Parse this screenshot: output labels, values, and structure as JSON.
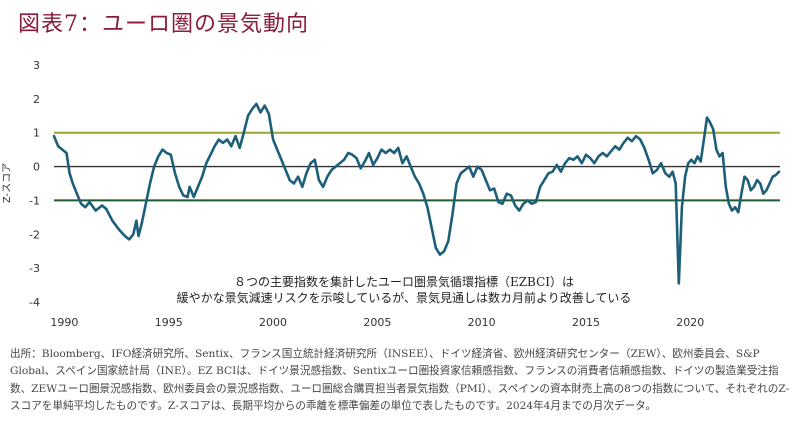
{
  "header": {
    "title": "図表7：ユーロ圏の景気動向"
  },
  "chart_data": {
    "type": "line",
    "title": "図表7：ユーロ圏の景気動向",
    "xlabel": "",
    "ylabel": "Z-スコア",
    "xlim": [
      1989.5,
      2024.3
    ],
    "ylim": [
      -4,
      3
    ],
    "x_ticks": [
      "1990",
      "1995",
      "2000",
      "2005",
      "2010",
      "2015",
      "2020"
    ],
    "y_ticks": [
      "3",
      "2",
      "1",
      "0",
      "-1",
      "-2",
      "-3",
      "-4"
    ],
    "reference_lines": [
      {
        "value": 1,
        "color": "#9aa62e"
      },
      {
        "value": 0,
        "color": "#333333"
      },
      {
        "value": -1,
        "color": "#1d5c2e"
      }
    ],
    "annotation": [
      "８つの主要指数を集計したユーロ圏景気循環指標（EZBCI）は",
      "緩やかな景気減速リスクを示唆しているが、景気見通しは数カ月前より改善している"
    ],
    "series_color": "#1d5f7a",
    "series": [
      {
        "name": "",
        "points": [
          [
            1989.5,
            0.9
          ],
          [
            1989.7,
            0.6
          ],
          [
            1989.9,
            0.5
          ],
          [
            1990.1,
            0.4
          ],
          [
            1990.25,
            -0.2
          ],
          [
            1990.4,
            -0.5
          ],
          [
            1990.6,
            -0.8
          ],
          [
            1990.8,
            -1.1
          ],
          [
            1991.0,
            -1.2
          ],
          [
            1991.2,
            -1.05
          ],
          [
            1991.5,
            -1.3
          ],
          [
            1991.8,
            -1.15
          ],
          [
            1992.0,
            -1.25
          ],
          [
            1992.3,
            -1.6
          ],
          [
            1992.6,
            -1.85
          ],
          [
            1992.9,
            -2.05
          ],
          [
            1993.1,
            -2.15
          ],
          [
            1993.3,
            -2.0
          ],
          [
            1993.45,
            -1.6
          ],
          [
            1993.55,
            -2.05
          ],
          [
            1993.7,
            -1.7
          ],
          [
            1993.9,
            -1.1
          ],
          [
            1994.1,
            -0.5
          ],
          [
            1994.3,
            0.0
          ],
          [
            1994.5,
            0.3
          ],
          [
            1994.7,
            0.5
          ],
          [
            1994.9,
            0.4
          ],
          [
            1995.1,
            0.35
          ],
          [
            1995.3,
            -0.2
          ],
          [
            1995.5,
            -0.6
          ],
          [
            1995.7,
            -0.85
          ],
          [
            1995.9,
            -0.9
          ],
          [
            1996.0,
            -0.6
          ],
          [
            1996.2,
            -0.9
          ],
          [
            1996.4,
            -0.6
          ],
          [
            1996.6,
            -0.3
          ],
          [
            1996.8,
            0.1
          ],
          [
            1997.0,
            0.35
          ],
          [
            1997.2,
            0.6
          ],
          [
            1997.4,
            0.8
          ],
          [
            1997.6,
            0.7
          ],
          [
            1997.8,
            0.8
          ],
          [
            1998.0,
            0.6
          ],
          [
            1998.2,
            0.9
          ],
          [
            1998.4,
            0.55
          ],
          [
            1998.6,
            1.0
          ],
          [
            1998.8,
            1.5
          ],
          [
            1999.0,
            1.7
          ],
          [
            1999.2,
            1.85
          ],
          [
            1999.4,
            1.6
          ],
          [
            1999.6,
            1.8
          ],
          [
            1999.8,
            1.55
          ],
          [
            2000.0,
            0.8
          ],
          [
            2000.2,
            0.5
          ],
          [
            2000.4,
            0.2
          ],
          [
            2000.6,
            -0.1
          ],
          [
            2000.8,
            -0.4
          ],
          [
            2001.0,
            -0.5
          ],
          [
            2001.2,
            -0.3
          ],
          [
            2001.4,
            -0.6
          ],
          [
            2001.6,
            -0.2
          ],
          [
            2001.8,
            0.1
          ],
          [
            2002.0,
            0.2
          ],
          [
            2002.2,
            -0.4
          ],
          [
            2002.4,
            -0.6
          ],
          [
            2002.6,
            -0.3
          ],
          [
            2002.8,
            -0.1
          ],
          [
            2003.0,
            0.0
          ],
          [
            2003.2,
            0.1
          ],
          [
            2003.4,
            0.2
          ],
          [
            2003.6,
            0.4
          ],
          [
            2003.8,
            0.35
          ],
          [
            2004.0,
            0.25
          ],
          [
            2004.2,
            -0.05
          ],
          [
            2004.4,
            0.15
          ],
          [
            2004.6,
            0.4
          ],
          [
            2004.8,
            0.05
          ],
          [
            2005.0,
            0.25
          ],
          [
            2005.2,
            0.5
          ],
          [
            2005.4,
            0.4
          ],
          [
            2005.6,
            0.5
          ],
          [
            2005.8,
            0.4
          ],
          [
            2006.0,
            0.55
          ],
          [
            2006.2,
            0.1
          ],
          [
            2006.4,
            0.3
          ],
          [
            2006.6,
            0.0
          ],
          [
            2006.8,
            -0.3
          ],
          [
            2007.0,
            -0.5
          ],
          [
            2007.2,
            -0.8
          ],
          [
            2007.4,
            -1.2
          ],
          [
            2007.6,
            -1.8
          ],
          [
            2007.8,
            -2.4
          ],
          [
            2008.0,
            -2.6
          ],
          [
            2008.2,
            -2.5
          ],
          [
            2008.4,
            -2.2
          ],
          [
            2008.6,
            -1.4
          ],
          [
            2008.8,
            -0.5
          ],
          [
            2009.0,
            -0.2
          ],
          [
            2009.2,
            -0.1
          ],
          [
            2009.4,
            0.0
          ],
          [
            2009.6,
            -0.3
          ],
          [
            2009.8,
            0.0
          ],
          [
            2010.0,
            -0.1
          ],
          [
            2010.2,
            -0.4
          ],
          [
            2010.4,
            -0.7
          ],
          [
            2010.6,
            -0.65
          ],
          [
            2010.8,
            -1.05
          ],
          [
            2011.0,
            -1.1
          ],
          [
            2011.2,
            -0.8
          ],
          [
            2011.4,
            -0.85
          ],
          [
            2011.6,
            -1.15
          ],
          [
            2011.8,
            -1.3
          ],
          [
            2012.0,
            -1.1
          ],
          [
            2012.2,
            -1.0
          ],
          [
            2012.4,
            -1.1
          ],
          [
            2012.6,
            -1.05
          ],
          [
            2012.8,
            -0.6
          ],
          [
            2013.0,
            -0.4
          ],
          [
            2013.2,
            -0.2
          ],
          [
            2013.4,
            -0.15
          ],
          [
            2013.6,
            0.05
          ],
          [
            2013.8,
            -0.15
          ],
          [
            2014.0,
            0.1
          ],
          [
            2014.2,
            0.25
          ],
          [
            2014.4,
            0.2
          ],
          [
            2014.6,
            0.3
          ],
          [
            2014.8,
            0.1
          ],
          [
            2015.0,
            0.35
          ],
          [
            2015.2,
            0.25
          ],
          [
            2015.4,
            0.1
          ],
          [
            2015.6,
            0.3
          ],
          [
            2015.8,
            0.4
          ],
          [
            2016.0,
            0.3
          ],
          [
            2016.2,
            0.45
          ],
          [
            2016.4,
            0.6
          ],
          [
            2016.6,
            0.5
          ],
          [
            2016.8,
            0.7
          ],
          [
            2017.0,
            0.85
          ],
          [
            2017.2,
            0.75
          ],
          [
            2017.4,
            0.9
          ],
          [
            2017.6,
            0.8
          ],
          [
            2017.8,
            0.55
          ],
          [
            2018.0,
            0.2
          ],
          [
            2018.2,
            -0.2
          ],
          [
            2018.4,
            -0.1
          ],
          [
            2018.6,
            0.1
          ],
          [
            2018.8,
            -0.2
          ],
          [
            2019.0,
            -0.3
          ],
          [
            2019.15,
            -0.15
          ],
          [
            2019.3,
            -0.5
          ],
          [
            2019.45,
            -3.45
          ],
          [
            2019.6,
            -1.2
          ],
          [
            2019.75,
            -0.3
          ],
          [
            2019.9,
            0.1
          ],
          [
            2020.05,
            0.2
          ],
          [
            2020.2,
            0.1
          ],
          [
            2020.35,
            0.3
          ],
          [
            2020.5,
            0.15
          ],
          [
            2020.65,
            0.8
          ],
          [
            2020.8,
            1.45
          ],
          [
            2020.95,
            1.3
          ],
          [
            2021.1,
            1.1
          ],
          [
            2021.25,
            0.5
          ],
          [
            2021.4,
            0.3
          ],
          [
            2021.55,
            0.4
          ],
          [
            2021.7,
            -0.6
          ],
          [
            2021.85,
            -1.1
          ],
          [
            2022.0,
            -1.3
          ],
          [
            2022.15,
            -1.2
          ],
          [
            2022.3,
            -1.35
          ],
          [
            2022.45,
            -0.8
          ],
          [
            2022.6,
            -0.3
          ],
          [
            2022.75,
            -0.4
          ],
          [
            2022.9,
            -0.7
          ],
          [
            2023.05,
            -0.6
          ],
          [
            2023.2,
            -0.4
          ],
          [
            2023.35,
            -0.5
          ],
          [
            2023.5,
            -0.8
          ],
          [
            2023.65,
            -0.7
          ],
          [
            2023.8,
            -0.5
          ],
          [
            2023.95,
            -0.3
          ],
          [
            2024.1,
            -0.25
          ],
          [
            2024.25,
            -0.15
          ]
        ]
      }
    ]
  },
  "source": "出所：Bloomberg、IFO経済研究所、Sentix、フランス国立統計経済研究所（INSEE）、ドイツ経済省、欧州経済研究センター（ZEW）、欧州委員会、S&P Global、スペイン国家統計局（INE）。EZ BCIは、ドイツ景況感指数、Sentixユーロ圏投資家信頼感指数、フランスの消費者信頼感指数、ドイツの製造業受注指数、ZEWユーロ圏景況感指数、欧州委員会の景況感指数、ユーロ圏総合購買担当者景気指数（PMI）、スペインの資本財売上高の8つの指数について、それぞれのZ-スコアを単純平均したものです。Z-スコアは、長期平均からの乖離を標準偏差の単位で表したものです。2024年4月までの月次データ。"
}
